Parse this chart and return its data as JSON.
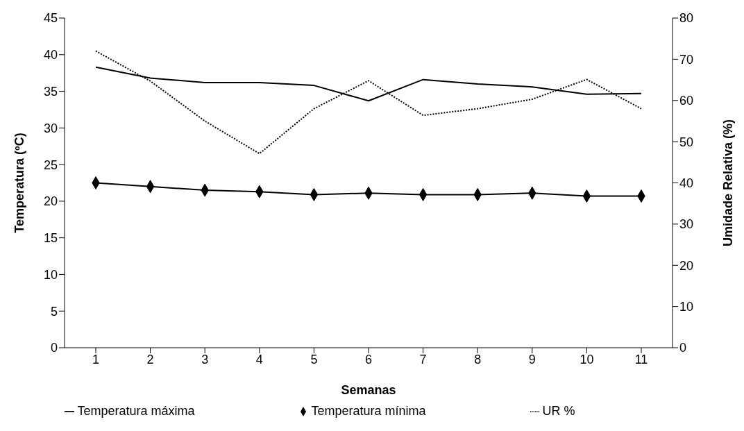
{
  "chart_data": {
    "type": "line",
    "xlabel": "Semanas",
    "ylabel": "Temperatura (ºC)",
    "y2label": "Umidade Relativa (%)",
    "categories": [
      "1",
      "2",
      "3",
      "4",
      "5",
      "6",
      "7",
      "8",
      "9",
      "10",
      "11"
    ],
    "series": [
      {
        "name": "Temperatura máxima",
        "color": "#000000",
        "marker": "none",
        "line_style": "solid",
        "values": [
          38.3,
          36.8,
          36.2,
          36.2,
          35.8,
          33.7,
          36.6,
          36.0,
          35.6,
          34.6,
          34.7
        ]
      },
      {
        "name": "Temperatura mínima",
        "color": "#000000",
        "marker": "diamond",
        "line_style": "solid",
        "values": [
          22.5,
          22.0,
          21.5,
          21.3,
          20.9,
          21.1,
          20.9,
          20.9,
          21.1,
          20.7,
          20.7
        ]
      },
      {
        "name": "UR %",
        "color": "#000000",
        "marker": "none",
        "line_style": "dotted",
        "axis": "y2",
        "values": [
          72,
          64.7,
          55,
          47.1,
          58,
          64.8,
          56.4,
          58,
          60.3,
          65.1,
          58
        ]
      }
    ],
    "ylim": [
      0,
      45
    ],
    "yticks": [
      0,
      5,
      10,
      15,
      20,
      25,
      30,
      35,
      40,
      45
    ],
    "y2lim": [
      0,
      80
    ],
    "y2ticks": [
      0,
      10,
      20,
      30,
      40,
      50,
      60,
      70,
      80
    ],
    "grid": false,
    "legend": "bottom"
  }
}
